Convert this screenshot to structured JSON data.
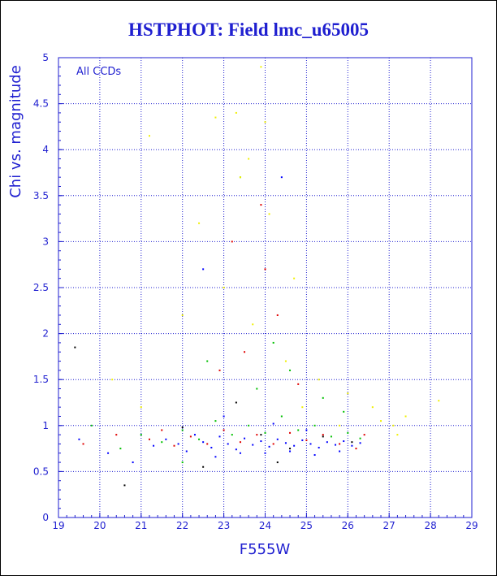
{
  "title": "HSTPHOT: Field lmc_u65005",
  "colors": {
    "axis": "#1f1fd0",
    "points": [
      "#0000ff",
      "#00c000",
      "#e00000",
      "#f0f000",
      "#000000"
    ]
  },
  "chart_data": {
    "type": "scatter",
    "title": "HSTPHOT: Field lmc_u65005",
    "xlabel": "F555W",
    "ylabel": "Chi vs. magnitude",
    "annotation": "All CCDs",
    "xlim": [
      19,
      29
    ],
    "ylim": [
      0,
      5
    ],
    "x_ticks": [
      "19",
      "20",
      "21",
      "22",
      "23",
      "24",
      "25",
      "26",
      "27",
      "28",
      "29"
    ],
    "y_ticks": [
      "0",
      "0.5",
      "1",
      "1.5",
      "2",
      "2.5",
      "3",
      "3.5",
      "4",
      "4.5",
      "5"
    ],
    "grid": true,
    "series": [
      {
        "color": "#0000ff",
        "points": [
          [
            19.5,
            0.85
          ],
          [
            20.2,
            0.7
          ],
          [
            20.8,
            0.6
          ],
          [
            21.3,
            0.78
          ],
          [
            21.6,
            0.85
          ],
          [
            21.9,
            0.8
          ],
          [
            22.1,
            0.72
          ],
          [
            22.3,
            0.9
          ],
          [
            22.5,
            0.82
          ],
          [
            22.7,
            0.76
          ],
          [
            22.9,
            0.88
          ],
          [
            23.1,
            0.8
          ],
          [
            23.3,
            0.74
          ],
          [
            23.5,
            0.86
          ],
          [
            23.7,
            0.79
          ],
          [
            23.9,
            0.83
          ],
          [
            24.1,
            0.77
          ],
          [
            24.3,
            0.85
          ],
          [
            24.5,
            0.81
          ],
          [
            24.7,
            0.78
          ],
          [
            24.9,
            0.84
          ],
          [
            25.1,
            0.8
          ],
          [
            25.3,
            0.76
          ],
          [
            25.5,
            0.82
          ],
          [
            25.7,
            0.79
          ],
          [
            25.9,
            0.83
          ],
          [
            26.1,
            0.78
          ],
          [
            26.3,
            0.81
          ],
          [
            24.0,
            0.7
          ],
          [
            24.6,
            0.72
          ],
          [
            25.2,
            0.68
          ],
          [
            25.8,
            0.72
          ],
          [
            23.4,
            0.7
          ],
          [
            22.8,
            0.66
          ],
          [
            24.2,
            1.02
          ],
          [
            23.0,
            1.1
          ],
          [
            25.0,
            0.95
          ],
          [
            24.4,
            3.7
          ],
          [
            22.5,
            2.7
          ]
        ]
      },
      {
        "color": "#00c000",
        "points": [
          [
            19.8,
            1.0
          ],
          [
            20.5,
            0.75
          ],
          [
            21.0,
            0.9
          ],
          [
            21.5,
            0.82
          ],
          [
            22.0,
            0.95
          ],
          [
            22.4,
            0.85
          ],
          [
            22.8,
            1.05
          ],
          [
            23.2,
            0.9
          ],
          [
            23.6,
            1.0
          ],
          [
            24.0,
            0.92
          ],
          [
            24.4,
            1.1
          ],
          [
            24.8,
            0.95
          ],
          [
            25.2,
            1.0
          ],
          [
            25.6,
            0.88
          ],
          [
            26.0,
            0.92
          ],
          [
            26.3,
            0.86
          ],
          [
            23.8,
            1.4
          ],
          [
            24.6,
            1.6
          ],
          [
            23.4,
            3.7
          ],
          [
            24.2,
            1.9
          ],
          [
            22.6,
            1.7
          ],
          [
            25.4,
            1.3
          ],
          [
            22.0,
            0.6
          ],
          [
            25.9,
            1.15
          ]
        ]
      },
      {
        "color": "#e00000",
        "points": [
          [
            19.6,
            0.8
          ],
          [
            20.4,
            0.9
          ],
          [
            21.2,
            0.85
          ],
          [
            21.8,
            0.78
          ],
          [
            22.2,
            0.88
          ],
          [
            22.6,
            0.8
          ],
          [
            23.0,
            0.95
          ],
          [
            23.4,
            0.82
          ],
          [
            23.8,
            0.9
          ],
          [
            24.2,
            0.8
          ],
          [
            24.6,
            0.92
          ],
          [
            25.0,
            0.84
          ],
          [
            25.4,
            0.9
          ],
          [
            25.8,
            0.8
          ],
          [
            26.2,
            0.75
          ],
          [
            26.4,
            0.9
          ],
          [
            23.2,
            3.0
          ],
          [
            23.9,
            3.4
          ],
          [
            24.0,
            2.7
          ],
          [
            24.3,
            2.2
          ],
          [
            23.5,
            1.8
          ],
          [
            22.9,
            1.6
          ],
          [
            24.8,
            1.45
          ],
          [
            21.5,
            0.95
          ]
        ]
      },
      {
        "color": "#f0f000",
        "points": [
          [
            21.2,
            4.15
          ],
          [
            22.8,
            4.35
          ],
          [
            23.3,
            4.4
          ],
          [
            23.9,
            4.9
          ],
          [
            24.0,
            4.3
          ],
          [
            23.6,
            3.9
          ],
          [
            23.4,
            3.7
          ],
          [
            22.4,
            3.2
          ],
          [
            24.1,
            3.3
          ],
          [
            24.7,
            2.6
          ],
          [
            23.0,
            2.5
          ],
          [
            22.0,
            2.2
          ],
          [
            24.5,
            1.7
          ],
          [
            25.3,
            1.5
          ],
          [
            26.0,
            1.35
          ],
          [
            26.6,
            1.2
          ],
          [
            27.1,
            1.0
          ],
          [
            27.4,
            1.1
          ],
          [
            28.2,
            1.27
          ],
          [
            27.2,
            0.9
          ],
          [
            26.8,
            1.05
          ],
          [
            25.8,
            1.0
          ],
          [
            21.0,
            1.2
          ],
          [
            20.3,
            1.5
          ],
          [
            24.9,
            1.2
          ],
          [
            23.7,
            2.1
          ]
        ]
      },
      {
        "color": "#000000",
        "points": [
          [
            19.4,
            1.85
          ],
          [
            20.6,
            0.35
          ],
          [
            22.5,
            0.55
          ],
          [
            23.9,
            0.9
          ],
          [
            24.6,
            0.75
          ],
          [
            25.4,
            0.88
          ],
          [
            26.1,
            0.82
          ],
          [
            22.0,
            0.98
          ],
          [
            23.3,
            1.25
          ],
          [
            24.3,
            0.6
          ]
        ]
      }
    ]
  }
}
